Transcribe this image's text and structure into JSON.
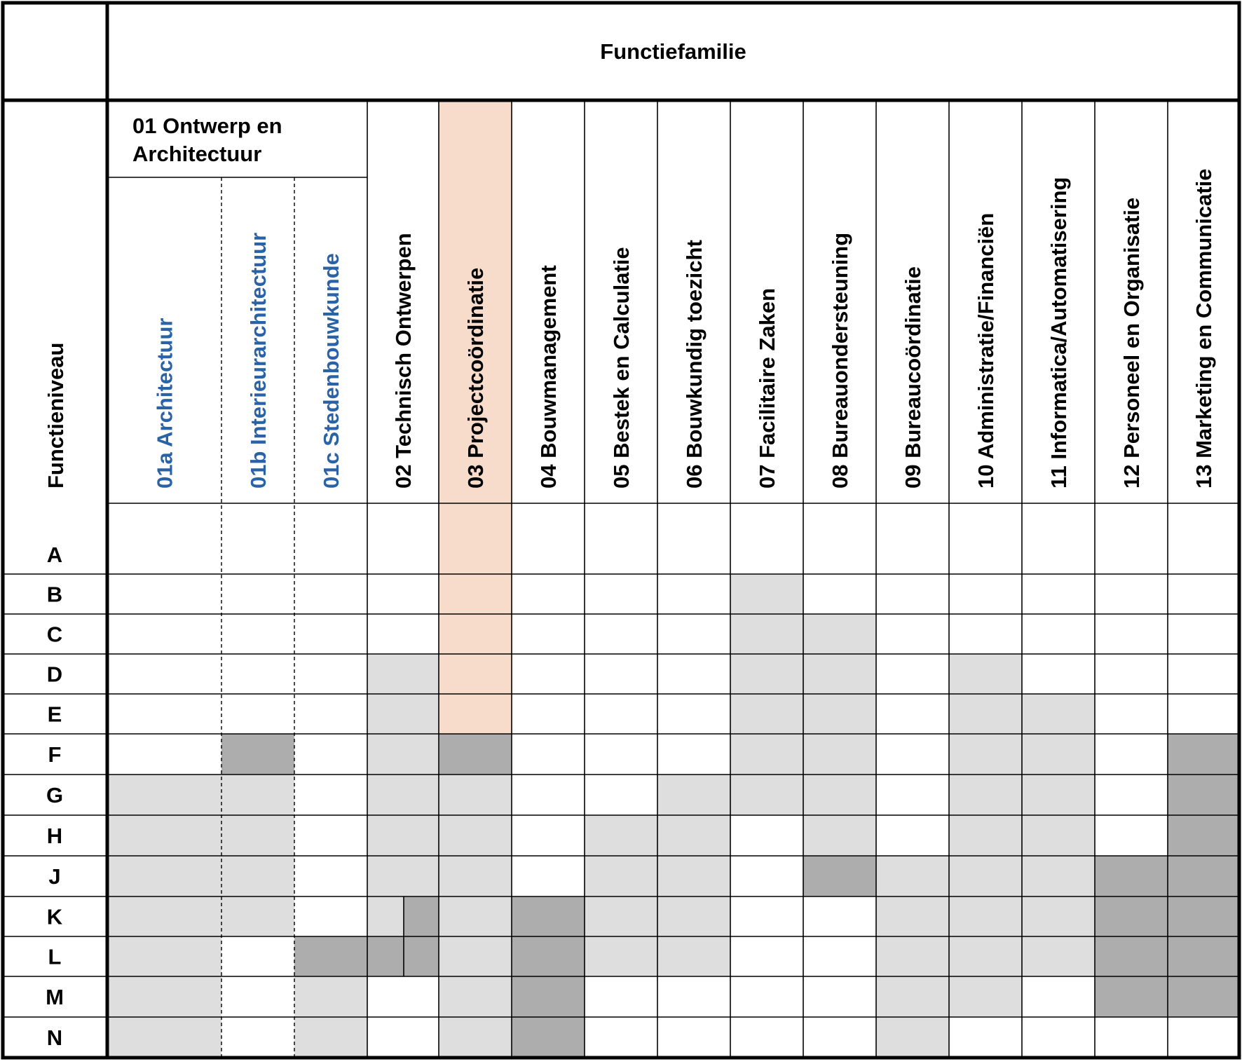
{
  "header": {
    "family_title": "Functiefamilie",
    "level_title": "Functieniveau",
    "group_01_title_line1": "01 Ontwerp en",
    "group_01_title_line2": "Architectuur"
  },
  "colors": {
    "grid": "#000000",
    "cell_light": "#dedede",
    "cell_dark": "#adadad",
    "cell_highlight": "#f8dccb",
    "subfamily_text": "#2a62a8",
    "text": "#000000"
  },
  "columns": [
    {
      "label": "01a Architectuur",
      "subfamily": true
    },
    {
      "label": "01b Interieurarchitectuur",
      "subfamily": true
    },
    {
      "label": "01c Stedenbouwkunde",
      "subfamily": true
    },
    {
      "label": "02 Technisch Ontwerpen",
      "subfamily": false
    },
    {
      "label": "03 Projectcoördinatie",
      "subfamily": false,
      "highlighted": true
    },
    {
      "label": "04 Bouwmanagement",
      "subfamily": false
    },
    {
      "label": "05 Bestek en Calculatie",
      "subfamily": false
    },
    {
      "label": "06 Bouwkundig toezicht",
      "subfamily": false
    },
    {
      "label": "07 Facilitaire Zaken",
      "subfamily": false
    },
    {
      "label": "08 Bureauondersteuning",
      "subfamily": false
    },
    {
      "label": "09 Bureaucoördinatie",
      "subfamily": false
    },
    {
      "label": "10 Administratie/Financiën",
      "subfamily": false
    },
    {
      "label": "11 Informatica/Automatisering",
      "subfamily": false
    },
    {
      "label": "12 Personeel en Organisatie",
      "subfamily": false
    },
    {
      "label": "13 Marketing en Communicatie",
      "subfamily": false
    }
  ],
  "levels": [
    "A",
    "B",
    "C",
    "D",
    "E",
    "F",
    "G",
    "H",
    "J",
    "K",
    "L",
    "M",
    "N"
  ],
  "legend_codes": {
    "0": "white",
    "1": "light grey",
    "2": "dark grey",
    "3": "highlight"
  },
  "matrix": [
    [
      0,
      0,
      0,
      0,
      3,
      0,
      0,
      0,
      0,
      0,
      0,
      0,
      0,
      0,
      0
    ],
    [
      0,
      0,
      0,
      0,
      3,
      0,
      0,
      0,
      1,
      0,
      0,
      0,
      0,
      0,
      0
    ],
    [
      0,
      0,
      0,
      0,
      3,
      0,
      0,
      0,
      1,
      1,
      0,
      0,
      0,
      0,
      0
    ],
    [
      0,
      0,
      0,
      1,
      3,
      0,
      0,
      0,
      1,
      1,
      0,
      1,
      0,
      0,
      0
    ],
    [
      0,
      0,
      0,
      1,
      3,
      0,
      0,
      0,
      1,
      1,
      0,
      1,
      1,
      0,
      0
    ],
    [
      0,
      2,
      0,
      1,
      2,
      0,
      0,
      0,
      1,
      1,
      0,
      1,
      1,
      0,
      2
    ],
    [
      1,
      1,
      0,
      1,
      1,
      0,
      0,
      1,
      1,
      1,
      0,
      1,
      1,
      0,
      2
    ],
    [
      1,
      1,
      0,
      1,
      1,
      0,
      1,
      1,
      0,
      1,
      0,
      1,
      1,
      0,
      2
    ],
    [
      1,
      1,
      0,
      1,
      1,
      0,
      1,
      1,
      0,
      2,
      1,
      1,
      1,
      2,
      2
    ],
    [
      1,
      1,
      0,
      [
        1,
        2
      ],
      1,
      2,
      1,
      1,
      0,
      0,
      1,
      1,
      1,
      2,
      2
    ],
    [
      1,
      0,
      2,
      [
        2,
        2
      ],
      1,
      2,
      1,
      1,
      0,
      0,
      1,
      1,
      1,
      2,
      2
    ],
    [
      1,
      0,
      1,
      0,
      1,
      2,
      0,
      0,
      0,
      0,
      1,
      1,
      0,
      2,
      2
    ],
    [
      1,
      0,
      1,
      0,
      1,
      2,
      0,
      0,
      0,
      0,
      1,
      0,
      0,
      0,
      0
    ]
  ]
}
